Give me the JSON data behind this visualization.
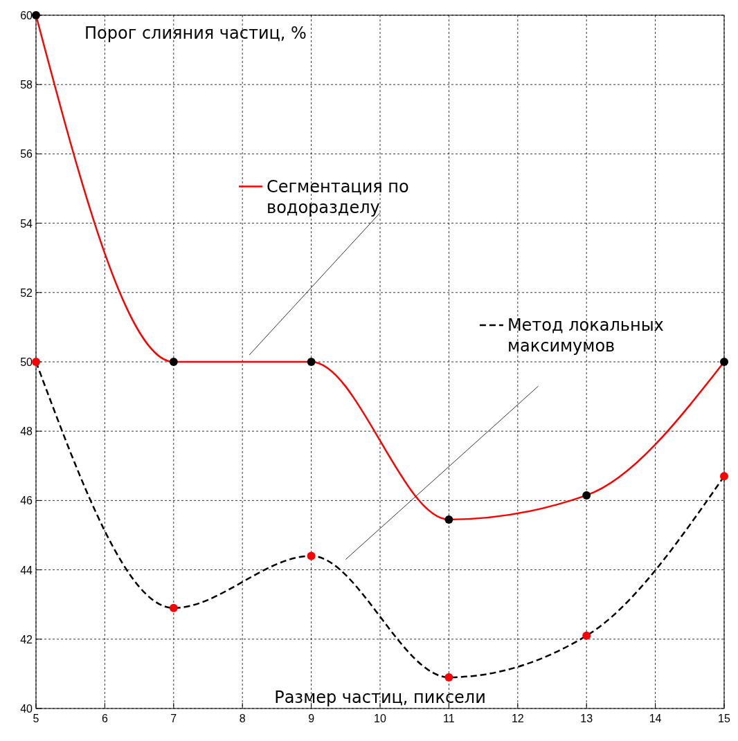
{
  "chart_data": {
    "type": "line",
    "xlabel": "Размер частиц, пиксели",
    "ylabel": "Порог слияния частиц, %",
    "x": [
      5,
      7,
      9,
      11,
      13,
      15
    ],
    "series": [
      {
        "name": "Сегментация по водоразделу",
        "color": "#ff0000",
        "colors": [
          "#000000",
          "#000000",
          "#000000",
          "#000000",
          "#000000",
          "#000000"
        ],
        "line_style": "solid",
        "values": [
          60,
          50,
          50,
          45.45,
          46.15,
          50
        ]
      },
      {
        "name": "Метод локальных максимумов",
        "color": "#000000",
        "colors": [
          "#ff0000",
          "#ff0000",
          "#ff0000",
          "#ff0000",
          "#ff0000",
          "#ff0000"
        ],
        "line_style": "dashed",
        "values": [
          50,
          42.9,
          44.4,
          40.9,
          42.1,
          46.7
        ]
      }
    ],
    "xlim": [
      5,
      15
    ],
    "xticks": [
      5,
      6,
      7,
      8,
      9,
      10,
      11,
      12,
      13,
      14,
      15
    ],
    "ylim": [
      40,
      60
    ],
    "yticks": [
      40,
      42,
      44,
      46,
      48,
      50,
      52,
      54,
      56,
      58,
      60
    ],
    "grid": true,
    "legend": "top",
    "marker": "circle"
  }
}
